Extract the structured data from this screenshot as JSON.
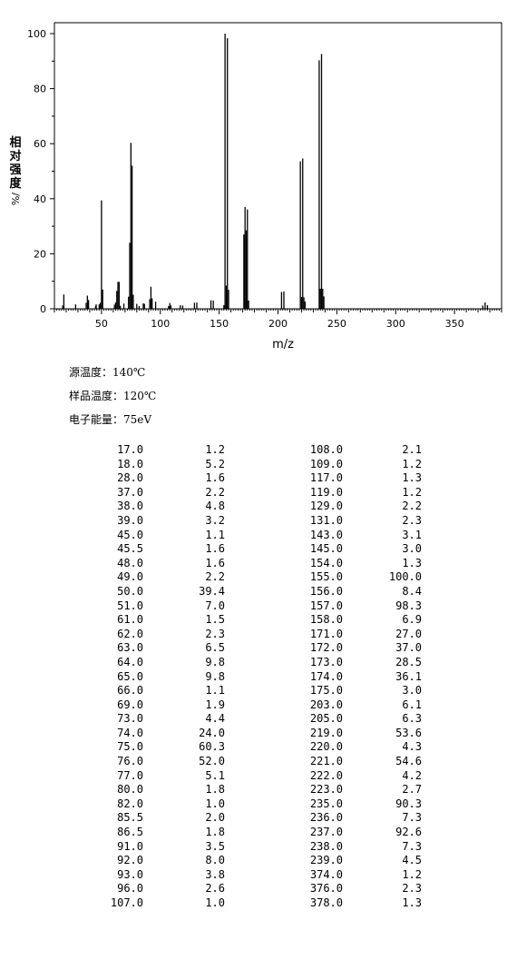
{
  "chart_data": {
    "type": "bar",
    "title": "",
    "xlabel": "m/z",
    "ylabel": "相对强度",
    "ylabel_unit": "%/",
    "xlim": [
      10,
      390
    ],
    "ylim": [
      0,
      100
    ],
    "x_ticks": [
      50,
      100,
      150,
      200,
      250,
      300,
      350
    ],
    "y_ticks": [
      0,
      20,
      40,
      60,
      80,
      100
    ],
    "grid": false,
    "color": "#000000",
    "peaks": [
      {
        "mz": 17.0,
        "intensity": 1.2
      },
      {
        "mz": 18.0,
        "intensity": 5.2
      },
      {
        "mz": 28.0,
        "intensity": 1.6
      },
      {
        "mz": 37.0,
        "intensity": 2.2
      },
      {
        "mz": 38.0,
        "intensity": 4.8
      },
      {
        "mz": 39.0,
        "intensity": 3.2
      },
      {
        "mz": 45.0,
        "intensity": 1.1
      },
      {
        "mz": 45.5,
        "intensity": 1.6
      },
      {
        "mz": 48.0,
        "intensity": 1.6
      },
      {
        "mz": 49.0,
        "intensity": 2.2
      },
      {
        "mz": 50.0,
        "intensity": 39.4
      },
      {
        "mz": 51.0,
        "intensity": 7.0
      },
      {
        "mz": 61.0,
        "intensity": 1.5
      },
      {
        "mz": 62.0,
        "intensity": 2.3
      },
      {
        "mz": 63.0,
        "intensity": 6.5
      },
      {
        "mz": 64.0,
        "intensity": 9.8
      },
      {
        "mz": 65.0,
        "intensity": 9.8
      },
      {
        "mz": 66.0,
        "intensity": 1.1
      },
      {
        "mz": 69.0,
        "intensity": 1.9
      },
      {
        "mz": 73.0,
        "intensity": 4.4
      },
      {
        "mz": 74.0,
        "intensity": 24.0
      },
      {
        "mz": 75.0,
        "intensity": 60.3
      },
      {
        "mz": 76.0,
        "intensity": 52.0
      },
      {
        "mz": 77.0,
        "intensity": 5.1
      },
      {
        "mz": 80.0,
        "intensity": 1.8
      },
      {
        "mz": 82.0,
        "intensity": 1.0
      },
      {
        "mz": 85.5,
        "intensity": 2.0
      },
      {
        "mz": 86.5,
        "intensity": 1.8
      },
      {
        "mz": 91.0,
        "intensity": 3.5
      },
      {
        "mz": 92.0,
        "intensity": 8.0
      },
      {
        "mz": 93.0,
        "intensity": 3.8
      },
      {
        "mz": 96.0,
        "intensity": 2.6
      },
      {
        "mz": 107.0,
        "intensity": 1.0
      },
      {
        "mz": 108.0,
        "intensity": 2.1
      },
      {
        "mz": 109.0,
        "intensity": 1.2
      },
      {
        "mz": 117.0,
        "intensity": 1.3
      },
      {
        "mz": 119.0,
        "intensity": 1.2
      },
      {
        "mz": 129.0,
        "intensity": 2.2
      },
      {
        "mz": 131.0,
        "intensity": 2.3
      },
      {
        "mz": 143.0,
        "intensity": 3.1
      },
      {
        "mz": 145.0,
        "intensity": 3.0
      },
      {
        "mz": 154.0,
        "intensity": 1.3
      },
      {
        "mz": 155.0,
        "intensity": 100.0
      },
      {
        "mz": 156.0,
        "intensity": 8.4
      },
      {
        "mz": 157.0,
        "intensity": 98.3
      },
      {
        "mz": 158.0,
        "intensity": 6.9
      },
      {
        "mz": 171.0,
        "intensity": 27.0
      },
      {
        "mz": 172.0,
        "intensity": 37.0
      },
      {
        "mz": 173.0,
        "intensity": 28.5
      },
      {
        "mz": 174.0,
        "intensity": 36.1
      },
      {
        "mz": 175.0,
        "intensity": 3.0
      },
      {
        "mz": 203.0,
        "intensity": 6.1
      },
      {
        "mz": 205.0,
        "intensity": 6.3
      },
      {
        "mz": 219.0,
        "intensity": 53.6
      },
      {
        "mz": 220.0,
        "intensity": 4.3
      },
      {
        "mz": 221.0,
        "intensity": 54.6
      },
      {
        "mz": 222.0,
        "intensity": 4.2
      },
      {
        "mz": 223.0,
        "intensity": 2.7
      },
      {
        "mz": 235.0,
        "intensity": 90.3
      },
      {
        "mz": 236.0,
        "intensity": 7.3
      },
      {
        "mz": 237.0,
        "intensity": 92.6
      },
      {
        "mz": 238.0,
        "intensity": 7.3
      },
      {
        "mz": 239.0,
        "intensity": 4.5
      },
      {
        "mz": 374.0,
        "intensity": 1.2
      },
      {
        "mz": 376.0,
        "intensity": 2.3
      },
      {
        "mz": 378.0,
        "intensity": 1.3
      }
    ]
  },
  "conditions": {
    "source_temp": "源温度：140℃",
    "sample_temp": "样品温度：120℃",
    "electron_energy": "电子能量：75eV"
  },
  "peak_table": [
    [
      "17.0",
      "1.2",
      "108.0",
      "2.1"
    ],
    [
      "18.0",
      "5.2",
      "109.0",
      "1.2"
    ],
    [
      "28.0",
      "1.6",
      "117.0",
      "1.3"
    ],
    [
      "37.0",
      "2.2",
      "119.0",
      "1.2"
    ],
    [
      "38.0",
      "4.8",
      "129.0",
      "2.2"
    ],
    [
      "39.0",
      "3.2",
      "131.0",
      "2.3"
    ],
    [
      "45.0",
      "1.1",
      "143.0",
      "3.1"
    ],
    [
      "45.5",
      "1.6",
      "145.0",
      "3.0"
    ],
    [
      "48.0",
      "1.6",
      "154.0",
      "1.3"
    ],
    [
      "49.0",
      "2.2",
      "155.0",
      "100.0"
    ],
    [
      "50.0",
      "39.4",
      "156.0",
      "8.4"
    ],
    [
      "51.0",
      "7.0",
      "157.0",
      "98.3"
    ],
    [
      "61.0",
      "1.5",
      "158.0",
      "6.9"
    ],
    [
      "62.0",
      "2.3",
      "171.0",
      "27.0"
    ],
    [
      "63.0",
      "6.5",
      "172.0",
      "37.0"
    ],
    [
      "64.0",
      "9.8",
      "173.0",
      "28.5"
    ],
    [
      "65.0",
      "9.8",
      "174.0",
      "36.1"
    ],
    [
      "66.0",
      "1.1",
      "175.0",
      "3.0"
    ],
    [
      "69.0",
      "1.9",
      "203.0",
      "6.1"
    ],
    [
      "73.0",
      "4.4",
      "205.0",
      "6.3"
    ],
    [
      "74.0",
      "24.0",
      "219.0",
      "53.6"
    ],
    [
      "75.0",
      "60.3",
      "220.0",
      "4.3"
    ],
    [
      "76.0",
      "52.0",
      "221.0",
      "54.6"
    ],
    [
      "77.0",
      "5.1",
      "222.0",
      "4.2"
    ],
    [
      "80.0",
      "1.8",
      "223.0",
      "2.7"
    ],
    [
      "82.0",
      "1.0",
      "235.0",
      "90.3"
    ],
    [
      "85.5",
      "2.0",
      "236.0",
      "7.3"
    ],
    [
      "86.5",
      "1.8",
      "237.0",
      "92.6"
    ],
    [
      "91.0",
      "3.5",
      "238.0",
      "7.3"
    ],
    [
      "92.0",
      "8.0",
      "239.0",
      "4.5"
    ],
    [
      "93.0",
      "3.8",
      "374.0",
      "1.2"
    ],
    [
      "96.0",
      "2.6",
      "376.0",
      "2.3"
    ],
    [
      "107.0",
      "1.0",
      "378.0",
      "1.3"
    ]
  ]
}
